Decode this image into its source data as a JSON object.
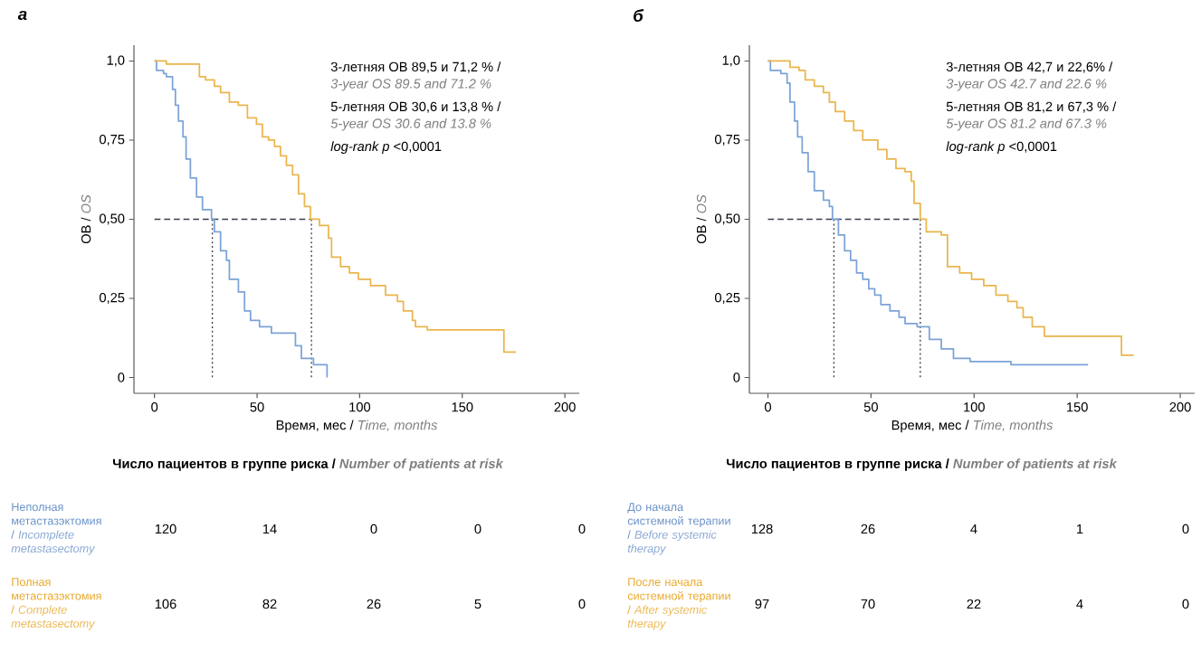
{
  "chart_data": [
    {
      "type": "step",
      "title": "а",
      "xlabel": "Время, мес / *Time, months*",
      "ylabel": "ОВ / *OS*",
      "xlim": [
        -10,
        207
      ],
      "ylim": [
        -0.05,
        1.05
      ],
      "xticks": [
        0,
        50,
        100,
        150,
        200
      ],
      "yticks": [
        0,
        {
          "value": 0.25,
          "label": "0,25"
        },
        {
          "value": 0.5,
          "label": "0,50"
        },
        {
          "value": 0.75,
          "label": "0,75"
        },
        {
          "value": 1,
          "label": "1,0"
        }
      ],
      "annotations": [
        "3-летняя ОВ 89,5 и 71,2 % /",
        "3-year OS 89.5 and 71.2 %",
        "5-летняя ОВ 30,6 и 13,8 % /",
        "5-year OS 30.6 and 13.8 %",
        "*log-rank p* <0,0001"
      ],
      "series": [
        {
          "type": "line",
          "color": "#3a3f4b",
          "line_style": "dashed",
          "x": [
            0,
            76.5
          ],
          "values": [
            0.5,
            0.5
          ]
        },
        {
          "type": "line",
          "color": "#3a3f4b",
          "line_style": "dotted",
          "x": [
            28.2,
            28.2
          ],
          "values": [
            0.5,
            0
          ]
        },
        {
          "type": "line",
          "color": "#3a3f4b",
          "line_style": "dotted",
          "x": [
            76.5,
            76.5
          ],
          "values": [
            0.5,
            0
          ]
        },
        {
          "color": "#7ba3d8",
          "x": [
            0,
            1,
            4.4,
            5.8,
            8.8,
            10.2,
            11.7,
            13.9,
            15.4,
            17.5,
            20.5,
            23.4,
            27.8,
            29.2,
            32.2,
            35.1,
            36.5,
            40.9,
            43.9,
            46.8,
            51.2,
            57,
            68.7,
            71.6,
            77.5,
            84.1
          ],
          "values": [
            1,
            0.97,
            0.96,
            0.95,
            0.91,
            0.86,
            0.81,
            0.76,
            0.69,
            0.63,
            0.57,
            0.53,
            0.5,
            0.46,
            0.4,
            0.37,
            0.31,
            0.27,
            0.21,
            0.18,
            0.16,
            0.14,
            0.1,
            0.06,
            0.04,
            0
          ]
        },
        {
          "color": "#eab54c",
          "x": [
            0,
            5.8,
            21.9,
            24.9,
            29.2,
            32.2,
            36.5,
            40.9,
            45.3,
            49.7,
            52.6,
            55.6,
            58.5,
            61.4,
            64.3,
            67.3,
            70.2,
            73.1,
            76,
            80.4,
            84.8,
            86.3,
            90.7,
            95,
            99.4,
            105.3,
            112.6,
            118.4,
            121.3,
            125.7,
            127.2,
            133,
            170.3,
            176.2
          ],
          "values": [
            1,
            0.99,
            0.95,
            0.94,
            0.92,
            0.9,
            0.87,
            0.86,
            0.82,
            0.8,
            0.76,
            0.75,
            0.73,
            0.7,
            0.67,
            0.64,
            0.58,
            0.54,
            0.5,
            0.48,
            0.44,
            0.38,
            0.35,
            0.33,
            0.31,
            0.29,
            0.26,
            0.24,
            0.21,
            0.18,
            0.16,
            0.15,
            0.08,
            0.08
          ]
        }
      ]
    },
    {
      "type": "step",
      "title": "б",
      "xlabel": "Время, мес / *Time, months*",
      "ylabel": "ОВ / *OS*",
      "xlim": [
        -9,
        207
      ],
      "ylim": [
        -0.05,
        1.05
      ],
      "xticks": [
        0,
        50,
        100,
        150,
        200
      ],
      "yticks": [
        0,
        {
          "value": 0.25,
          "label": "0,25"
        },
        {
          "value": 0.5,
          "label": "0,50"
        },
        {
          "value": 0.75,
          "label": "0,75"
        },
        {
          "value": 1,
          "label": "1,0"
        }
      ],
      "annotations": [
        "3-летняя ОВ 42,7 и 22,6% /",
        "3-year OS 42.7 and 22.6 %",
        "5-летняя ОВ 81,2 и 67,3 % /",
        "5-year OS 81.2 and 67.3 %",
        "*log-rank p* <0,0001"
      ],
      "series": [
        {
          "type": "line",
          "color": "#3a3f4b",
          "line_style": "dashed",
          "x": [
            0,
            73.9
          ],
          "values": [
            0.5,
            0.5
          ]
        },
        {
          "type": "line",
          "color": "#3a3f4b",
          "line_style": "dotted",
          "x": [
            32,
            32
          ],
          "values": [
            0.5,
            0
          ]
        },
        {
          "type": "line",
          "color": "#3a3f4b",
          "line_style": "dotted",
          "x": [
            73.9,
            73.9
          ],
          "values": [
            0.5,
            0
          ]
        },
        {
          "color": "#7ba3d8",
          "x": [
            0,
            1.2,
            6.3,
            9.3,
            10.7,
            12.9,
            14.4,
            16.6,
            19.5,
            22.5,
            26.9,
            29.8,
            31.3,
            34.2,
            37.2,
            40.1,
            43,
            46,
            48.9,
            51.8,
            54.8,
            59.2,
            63.6,
            66.5,
            72.4,
            78.3,
            84.1,
            90,
            98.1,
            117.9,
            155.3
          ],
          "values": [
            1,
            0.97,
            0.96,
            0.93,
            0.87,
            0.81,
            0.76,
            0.71,
            0.65,
            0.59,
            0.56,
            0.54,
            0.5,
            0.45,
            0.4,
            0.37,
            0.33,
            0.31,
            0.28,
            0.26,
            0.23,
            0.21,
            0.19,
            0.17,
            0.16,
            0.12,
            0.09,
            0.06,
            0.05,
            0.04,
            0.04
          ]
        },
        {
          "color": "#eab54c",
          "x": [
            0,
            10.7,
            15.1,
            18.1,
            22.5,
            26.9,
            29.8,
            32.7,
            37.2,
            41.6,
            46,
            53.3,
            57.7,
            62.1,
            66.5,
            69.5,
            70.9,
            73.9,
            76.8,
            84.1,
            87.1,
            93,
            98.8,
            104.7,
            110.6,
            116.4,
            120.8,
            123.8,
            128.2,
            134.1,
            171.5,
            177.4
          ],
          "values": [
            1,
            0.98,
            0.97,
            0.94,
            0.92,
            0.9,
            0.87,
            0.84,
            0.81,
            0.78,
            0.75,
            0.72,
            0.69,
            0.66,
            0.65,
            0.62,
            0.55,
            0.5,
            0.46,
            0.45,
            0.35,
            0.33,
            0.31,
            0.29,
            0.26,
            0.24,
            0.22,
            0.19,
            0.16,
            0.13,
            0.07,
            0.07
          ]
        }
      ]
    },
    {
      "type": "other",
      "title": "Число пациентов в группе риска / *Number of patients at risk*",
      "categories": [
        "Неполная метастазэктомия / *Incomplete metastasectomy*",
        "Полная метастазэктомия / *Complete metastasectomy*"
      ],
      "colors": [
        "#6a92c8",
        "#e9a82b"
      ],
      "annotations": [
        "120",
        "14",
        "0",
        "0",
        "0",
        "106",
        "82",
        "26",
        "5",
        "0"
      ]
    },
    {
      "type": "other",
      "title": "Число пациентов в группе риска / *Number of patients at risk*",
      "categories": [
        "До начала системной терапии / *Before systemic therapy*",
        "После начала системной терапии / *After systemic therapy*"
      ],
      "colors": [
        "#6a92c8",
        "#e9a82b"
      ],
      "annotations": [
        "128",
        "26",
        "4",
        "1",
        "0",
        "97",
        "70",
        "22",
        "4",
        "0"
      ]
    }
  ]
}
